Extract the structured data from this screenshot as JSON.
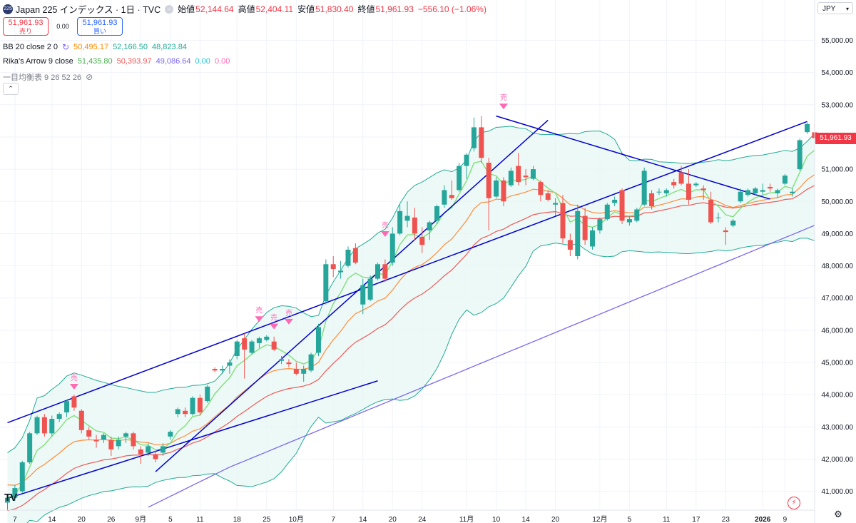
{
  "header": {
    "symbol_badge": "225",
    "title": "Japan 225 インデックス · 1日 · TVC",
    "open_label": "始値",
    "open_value": "52,144.64",
    "high_label": "高値",
    "high_value": "52,404.11",
    "low_label": "安値",
    "low_value": "51,830.40",
    "close_label": "終値",
    "close_value": "51,961.93",
    "change_value": "−556.10 (−1.06%)"
  },
  "trade": {
    "sell_price": "51,961.93",
    "sell_label": "売り",
    "spread": "0.00",
    "buy_price": "51,961.93",
    "buy_label": "買い"
  },
  "indicators": {
    "bb": {
      "name": "BB 20 close 2 0",
      "v1": "50,495.17",
      "v2": "52,166.50",
      "v3": "48,823.84"
    },
    "rika": {
      "name": "Rika's Arrow 9 close",
      "v1": "51,435.80",
      "v2": "50,393.97",
      "v3": "49,086.64",
      "v4": "0.00",
      "v5": "0.00"
    },
    "ichimoku": {
      "name": "一目均衡表 9 26 52 26"
    }
  },
  "currency": "JPY",
  "last_price_tag": "51,961.93",
  "colors": {
    "up": "#26a69a",
    "down": "#ef5350",
    "bb_line": "#22ab94",
    "bb_fill": "#e6f6f3",
    "fast": "#7ee07a",
    "mid": "#ff8c3a",
    "slow": "#f05a5a",
    "long": "#7b68ee",
    "trend": "#0000cc",
    "arrow": "#ff69b4"
  },
  "chart_data": {
    "type": "candlestick",
    "ylim": [
      40600,
      55700
    ],
    "y_ticks": [
      "41,000.00",
      "42,000.00",
      "43,000.00",
      "44,000.00",
      "45,000.00",
      "46,000.00",
      "47,000.00",
      "48,000.00",
      "49,000.00",
      "50,000.00",
      "51,000.00",
      "52,000.00",
      "53,000.00",
      "54,000.00",
      "55,000.00"
    ],
    "x_ticks": [
      {
        "i": 1,
        "label": "7"
      },
      {
        "i": 6,
        "label": "14"
      },
      {
        "i": 10,
        "label": "20"
      },
      {
        "i": 14,
        "label": "26"
      },
      {
        "i": 18,
        "label": "9月"
      },
      {
        "i": 22,
        "label": "5"
      },
      {
        "i": 26,
        "label": "11"
      },
      {
        "i": 31,
        "label": "18"
      },
      {
        "i": 35,
        "label": "25"
      },
      {
        "i": 39,
        "label": "10月"
      },
      {
        "i": 44,
        "label": "7"
      },
      {
        "i": 48,
        "label": "14"
      },
      {
        "i": 52,
        "label": "20"
      },
      {
        "i": 56,
        "label": "24"
      },
      {
        "i": 62,
        "label": "11月"
      },
      {
        "i": 66,
        "label": "10"
      },
      {
        "i": 70,
        "label": "14"
      },
      {
        "i": 74,
        "label": "20"
      },
      {
        "i": 80,
        "label": "12月"
      },
      {
        "i": 84,
        "label": "5"
      },
      {
        "i": 89,
        "label": "11"
      },
      {
        "i": 93,
        "label": "17"
      },
      {
        "i": 97,
        "label": "23"
      },
      {
        "i": 102,
        "label": "2026"
      },
      {
        "i": 105,
        "label": "9"
      }
    ],
    "candles": [
      [
        40650,
        40850,
        40400,
        40800
      ],
      [
        40800,
        41200,
        40700,
        41100
      ],
      [
        41000,
        41950,
        40950,
        41900
      ],
      [
        41900,
        42850,
        41850,
        42800
      ],
      [
        42800,
        43350,
        42750,
        43300
      ],
      [
        43300,
        43400,
        42700,
        42800
      ],
      [
        42800,
        43350,
        42700,
        43250
      ],
      [
        43250,
        43450,
        43150,
        43400
      ],
      [
        43450,
        43850,
        43300,
        43800
      ],
      [
        43950,
        44000,
        43500,
        43600
      ],
      [
        43500,
        43550,
        42800,
        42900
      ],
      [
        42900,
        43000,
        42600,
        42700
      ],
      [
        42600,
        42750,
        42350,
        42550
      ],
      [
        42600,
        42800,
        42500,
        42750
      ],
      [
        42600,
        42700,
        42100,
        42300
      ],
      [
        42400,
        42700,
        42300,
        42600
      ],
      [
        42700,
        42850,
        42500,
        42800
      ],
      [
        42800,
        42850,
        42300,
        42400
      ],
      [
        42300,
        42400,
        41850,
        42150
      ],
      [
        42200,
        42500,
        42100,
        42400
      ],
      [
        42150,
        42250,
        41900,
        42000
      ],
      [
        42200,
        42500,
        42100,
        42400
      ],
      [
        42700,
        42900,
        42600,
        42850
      ],
      [
        43400,
        43600,
        43300,
        43550
      ],
      [
        43500,
        43600,
        43300,
        43400
      ],
      [
        43400,
        43950,
        43350,
        43900
      ],
      [
        43900,
        44000,
        43350,
        43450
      ],
      [
        43800,
        44300,
        43750,
        44250
      ],
      [
        44800,
        44850,
        44700,
        44750
      ],
      [
        44750,
        44900,
        44650,
        44800
      ],
      [
        44900,
        45100,
        44650,
        45000
      ],
      [
        45200,
        45700,
        45100,
        45650
      ],
      [
        45750,
        45900,
        44500,
        45400
      ],
      [
        45300,
        45700,
        45250,
        45650
      ],
      [
        45600,
        45800,
        45450,
        45750
      ],
      [
        45700,
        45850,
        45650,
        45800
      ],
      [
        45650,
        45800,
        45350,
        45400
      ],
      [
        45050,
        45200,
        44950,
        45100
      ],
      [
        45000,
        45100,
        44850,
        44950
      ],
      [
        44800,
        45000,
        44600,
        44650
      ],
      [
        44650,
        44900,
        44400,
        44800
      ],
      [
        44750,
        45300,
        44700,
        45250
      ],
      [
        45300,
        46200,
        45200,
        46100
      ],
      [
        46900,
        48200,
        46800,
        48050
      ],
      [
        48050,
        48300,
        47650,
        47900
      ],
      [
        47800,
        48150,
        47600,
        47850
      ],
      [
        48000,
        48600,
        47950,
        48500
      ],
      [
        48550,
        48700,
        48050,
        48100
      ],
      [
        46800,
        47600,
        46500,
        47400
      ],
      [
        46950,
        47700,
        46900,
        47600
      ],
      [
        47600,
        48100,
        47550,
        48050
      ],
      [
        48050,
        48200,
        47500,
        47600
      ],
      [
        48100,
        49200,
        48000,
        49000
      ],
      [
        49000,
        49900,
        48950,
        49700
      ],
      [
        49400,
        50000,
        49200,
        49550
      ],
      [
        49500,
        49800,
        48800,
        49000
      ],
      [
        48900,
        49200,
        48400,
        48650
      ],
      [
        49100,
        49400,
        48800,
        49350
      ],
      [
        49400,
        49900,
        49300,
        49850
      ],
      [
        49900,
        50500,
        49800,
        50350
      ],
      [
        50200,
        50650,
        50050,
        50100
      ],
      [
        50350,
        51200,
        50300,
        51100
      ],
      [
        51100,
        51500,
        50700,
        51450
      ],
      [
        51650,
        52600,
        51550,
        52300
      ],
      [
        52300,
        52650,
        51200,
        51350
      ],
      [
        51200,
        51350,
        49100,
        50100
      ],
      [
        50150,
        50750,
        50100,
        50650
      ],
      [
        50650,
        50750,
        49850,
        50000
      ],
      [
        50500,
        51050,
        50450,
        50950
      ],
      [
        51100,
        51500,
        50500,
        50600
      ],
      [
        50800,
        51000,
        50500,
        50750
      ],
      [
        50700,
        51100,
        50650,
        51000
      ],
      [
        50600,
        50650,
        50000,
        50200
      ],
      [
        50250,
        50350,
        50000,
        50050
      ],
      [
        49900,
        50100,
        49550,
        49950
      ],
      [
        49950,
        50200,
        48700,
        48850
      ],
      [
        48800,
        49000,
        48300,
        48500
      ],
      [
        48300,
        49900,
        48200,
        49700
      ],
      [
        49550,
        49800,
        48650,
        48800
      ],
      [
        48600,
        49200,
        48500,
        49100
      ],
      [
        49100,
        49500,
        49000,
        49450
      ],
      [
        49450,
        49950,
        49400,
        49900
      ],
      [
        49950,
        50150,
        49850,
        50050
      ],
      [
        50350,
        50400,
        49300,
        49400
      ],
      [
        49350,
        49550,
        49250,
        49450
      ],
      [
        49400,
        49800,
        49350,
        49750
      ],
      [
        49900,
        51050,
        49850,
        50950
      ],
      [
        50250,
        50350,
        49750,
        49850
      ],
      [
        50300,
        50400,
        50200,
        50300
      ],
      [
        50250,
        50400,
        50150,
        50350
      ],
      [
        50600,
        50700,
        50400,
        50500
      ],
      [
        50900,
        51100,
        50500,
        50550
      ],
      [
        50550,
        51000,
        49900,
        50050
      ],
      [
        50500,
        50600,
        50450,
        50550
      ],
      [
        50400,
        50500,
        50050,
        50350
      ],
      [
        50050,
        50300,
        49300,
        49350
      ],
      [
        49500,
        49650,
        49350,
        49500
      ],
      [
        49100,
        49200,
        48650,
        49050
      ],
      [
        49250,
        49450,
        49200,
        49400
      ],
      [
        50000,
        50400,
        49950,
        50300
      ],
      [
        50200,
        50400,
        50150,
        50350
      ],
      [
        50250,
        50450,
        50200,
        50400
      ],
      [
        50300,
        50550,
        50200,
        50350
      ],
      [
        50450,
        50550,
        50300,
        50400
      ],
      [
        50250,
        50400,
        50100,
        50350
      ],
      [
        50550,
        50850,
        50500,
        50800
      ],
      [
        50250,
        50400,
        50150,
        50300
      ],
      [
        51000,
        51950,
        50950,
        51900
      ],
      [
        52150,
        52450,
        52100,
        52400
      ],
      [
        52144.64,
        52404.11,
        51830.4,
        51961.93
      ]
    ],
    "sell_arrows": [
      {
        "i": 9,
        "value": 43980
      },
      {
        "i": 34,
        "value": 46080
      },
      {
        "i": 36,
        "value": 45850
      },
      {
        "i": 38,
        "value": 46000
      },
      {
        "i": 51,
        "value": 48720
      },
      {
        "i": 67,
        "value": 52680
      }
    ],
    "sell_arrow_label": "売",
    "trend_lines": [
      {
        "from": [
          0,
          43130
        ],
        "to": [
          108,
          52480
        ]
      },
      {
        "from": [
          0,
          40780
        ],
        "to": [
          50,
          44430
        ]
      },
      {
        "from": [
          20,
          41610
        ],
        "to": [
          73,
          52520
        ]
      },
      {
        "from": [
          66,
          52650
        ],
        "to": [
          103,
          50070
        ]
      }
    ],
    "series_tail": {
      "bb_mid_last": 50495.17,
      "bb_upper_last": 52166.5,
      "bb_lower_last": 48823.84,
      "rika_fast_last": 51435.8,
      "rika_mid_last": 50393.97,
      "rika_slow_last": 49086.64
    }
  }
}
